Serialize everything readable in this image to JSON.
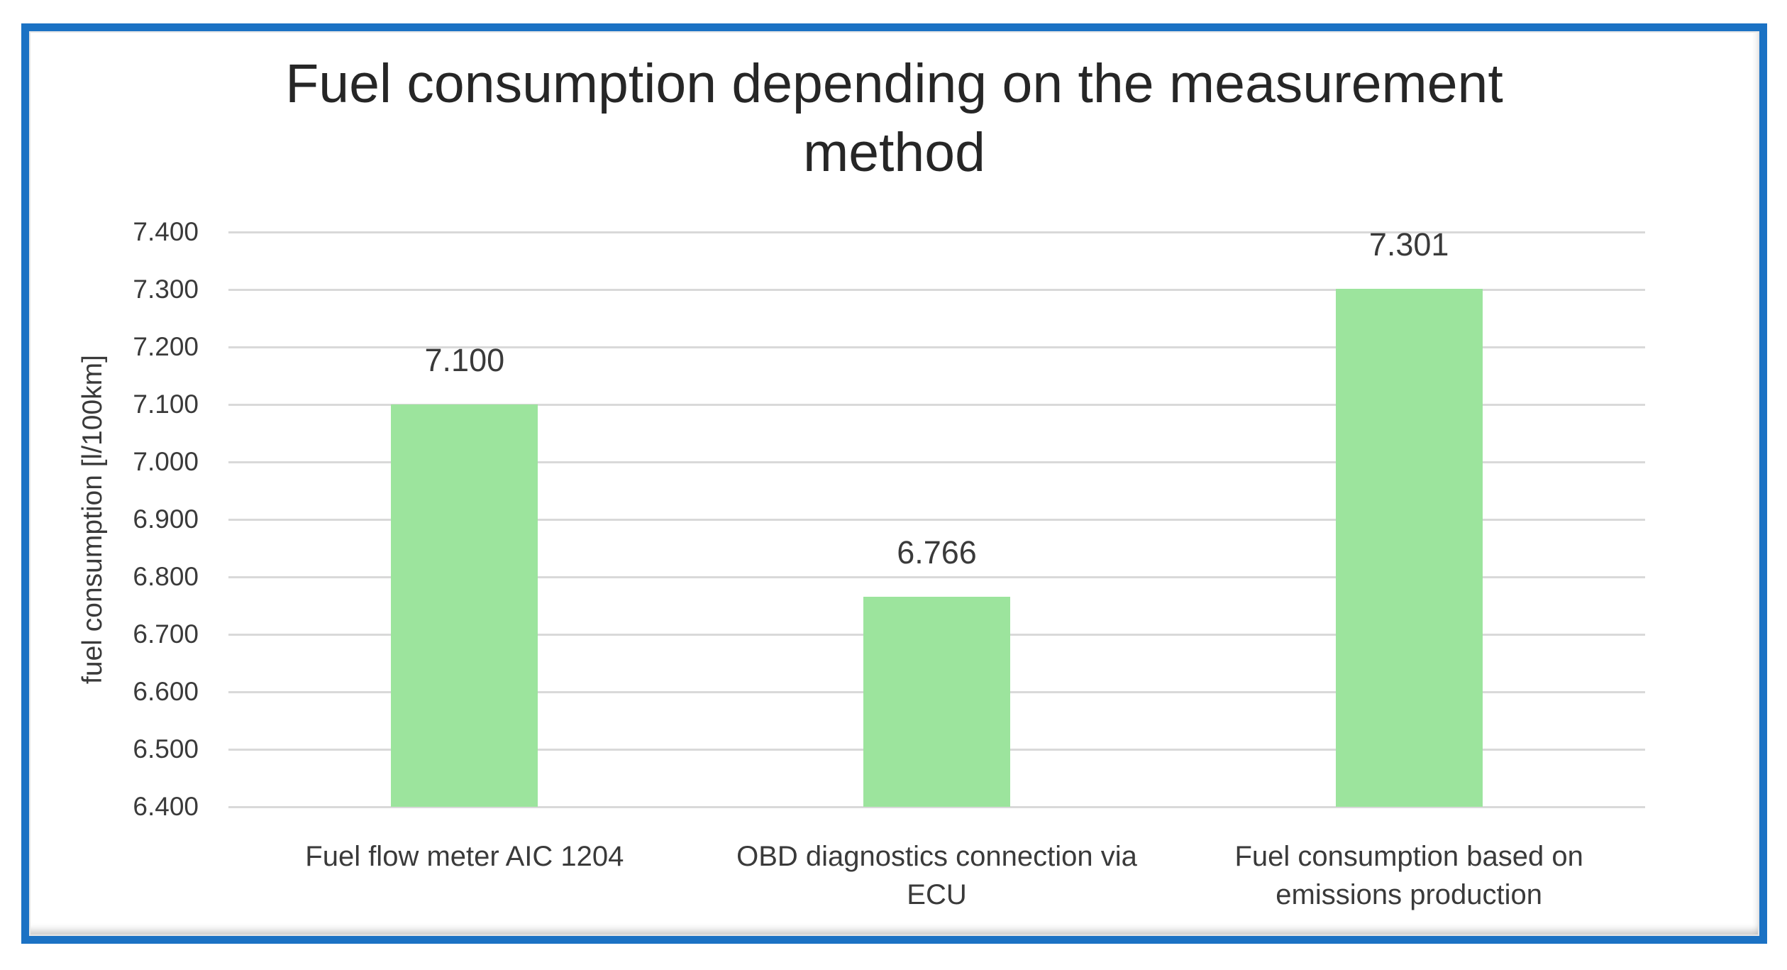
{
  "page": {
    "background": "#ffffff"
  },
  "frame": {
    "border_color": "#1B72C4"
  },
  "chart_data": {
    "type": "bar",
    "title": "Fuel consumption depending on the measurement method",
    "xlabel": "",
    "ylabel": "fuel consumption [l/100km]",
    "categories": [
      "Fuel flow meter AIC 1204",
      "OBD diagnostics connection via ECU",
      "Fuel consumption based on emissions production"
    ],
    "values": [
      7.1,
      6.766,
      7.301
    ],
    "data_labels": [
      "7.100",
      "6.766",
      "7.301"
    ],
    "ylim": [
      6.4,
      7.4
    ],
    "ytick_values": [
      7.4,
      7.3,
      7.2,
      7.1,
      7.0,
      6.9,
      6.8,
      6.7,
      6.6,
      6.5,
      6.4
    ],
    "ytick_labels": [
      "7.400",
      "7.300",
      "7.200",
      "7.100",
      "7.000",
      "6.900",
      "6.800",
      "6.700",
      "6.600",
      "6.500",
      "6.400"
    ],
    "grid": true,
    "legend": false,
    "bar_color": "#9CE49D",
    "gridline_color": "#D9D9D9",
    "text_color": "#3A3A3A",
    "title_color": "#262626",
    "frame_color": "#1B72C4"
  }
}
